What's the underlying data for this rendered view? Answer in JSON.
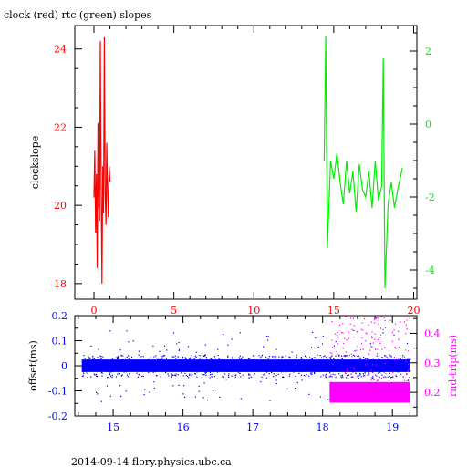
{
  "title": "clock (red) rtc (green) slopes",
  "footer": "2014-09-14 flory.physics.ubc.ca",
  "colors": {
    "red": "#ff0000",
    "green": "#00ee00",
    "blue": "#0000ff",
    "magenta": "#ff00ff",
    "axis": "#000000"
  },
  "chart_data": [
    {
      "type": "line",
      "ylabel": "clockslope",
      "xlim": [
        -1.2,
        20.2
      ],
      "ylim": [
        17.6,
        24.6
      ],
      "y2lim": [
        -4.8,
        2.7
      ],
      "x_ticks": [
        0,
        5,
        10,
        15,
        20
      ],
      "y_ticks": [
        18,
        20,
        22,
        24
      ],
      "y2_ticks": [
        -4,
        -2,
        0,
        2
      ],
      "x_tick_labels": [
        "0",
        "5",
        "10",
        "15",
        "20"
      ],
      "y_tick_labels": [
        "18",
        "20",
        "22",
        "24"
      ],
      "y2_tick_labels": [
        "-4",
        "-2",
        "0",
        "2"
      ],
      "series": [
        {
          "axis": "left",
          "color": "#ff0000",
          "x": [
            0.0,
            0.05,
            0.1,
            0.15,
            0.2,
            0.25,
            0.3,
            0.35,
            0.4,
            0.45,
            0.5,
            0.55,
            0.6,
            0.65,
            0.7,
            0.75,
            0.8,
            0.85,
            0.9,
            0.95,
            1.0
          ],
          "y": [
            20.2,
            21.4,
            19.3,
            20.8,
            18.4,
            22.1,
            20.0,
            19.6,
            24.2,
            20.5,
            18.0,
            21.0,
            19.8,
            24.3,
            20.3,
            19.5,
            21.6,
            20.4,
            19.7,
            21.0,
            20.6
          ]
        },
        {
          "axis": "right",
          "color": "#00ee00",
          "x": [
            14.4,
            14.5,
            14.6,
            14.8,
            15.0,
            15.2,
            15.4,
            15.6,
            15.8,
            16.0,
            16.2,
            16.4,
            16.6,
            16.8,
            17.0,
            17.2,
            17.4,
            17.6,
            17.8,
            18.0,
            18.1,
            18.2,
            18.4,
            18.6,
            18.8,
            19.0,
            19.2,
            19.3
          ],
          "y": [
            -1.0,
            2.4,
            -3.4,
            -1.0,
            -1.5,
            -0.8,
            -1.6,
            -2.2,
            -1.0,
            -1.9,
            -1.3,
            -2.4,
            -1.1,
            -1.8,
            -2.0,
            -1.3,
            -2.3,
            -1.0,
            -2.1,
            -1.7,
            1.8,
            -4.5,
            -2.2,
            -1.6,
            -2.3,
            -1.8,
            -1.4,
            -1.2
          ]
        }
      ]
    },
    {
      "type": "scatter",
      "ylabel": "offset(ms)",
      "y2label": "rnd-trip(ms)",
      "xlim": [
        14.45,
        19.35
      ],
      "ylim": [
        -0.2,
        0.2
      ],
      "y2lim": [
        0.12,
        0.46
      ],
      "x_ticks": [
        15,
        16,
        17,
        18,
        19
      ],
      "y_ticks": [
        -0.2,
        -0.1,
        0,
        0.1,
        0.2
      ],
      "y2_ticks": [
        0.2,
        0.3,
        0.4
      ],
      "x_tick_labels": [
        "15",
        "16",
        "17",
        "18",
        "19"
      ],
      "y_tick_labels": [
        "-0.2",
        "-0.1",
        "0",
        "0.1",
        "0.2"
      ],
      "y2_tick_labels": [
        "0.2",
        "0.3",
        "0.4"
      ],
      "series": [
        {
          "axis": "left",
          "color": "#0000ff",
          "x_range": [
            14.55,
            19.25
          ],
          "center": 0.0,
          "band": 0.025,
          "scatter_band": 0.09
        },
        {
          "axis": "right",
          "color": "#ff00ff",
          "x_range": [
            18.1,
            19.25
          ],
          "center": 0.2,
          "band": 0.035
        }
      ]
    }
  ]
}
